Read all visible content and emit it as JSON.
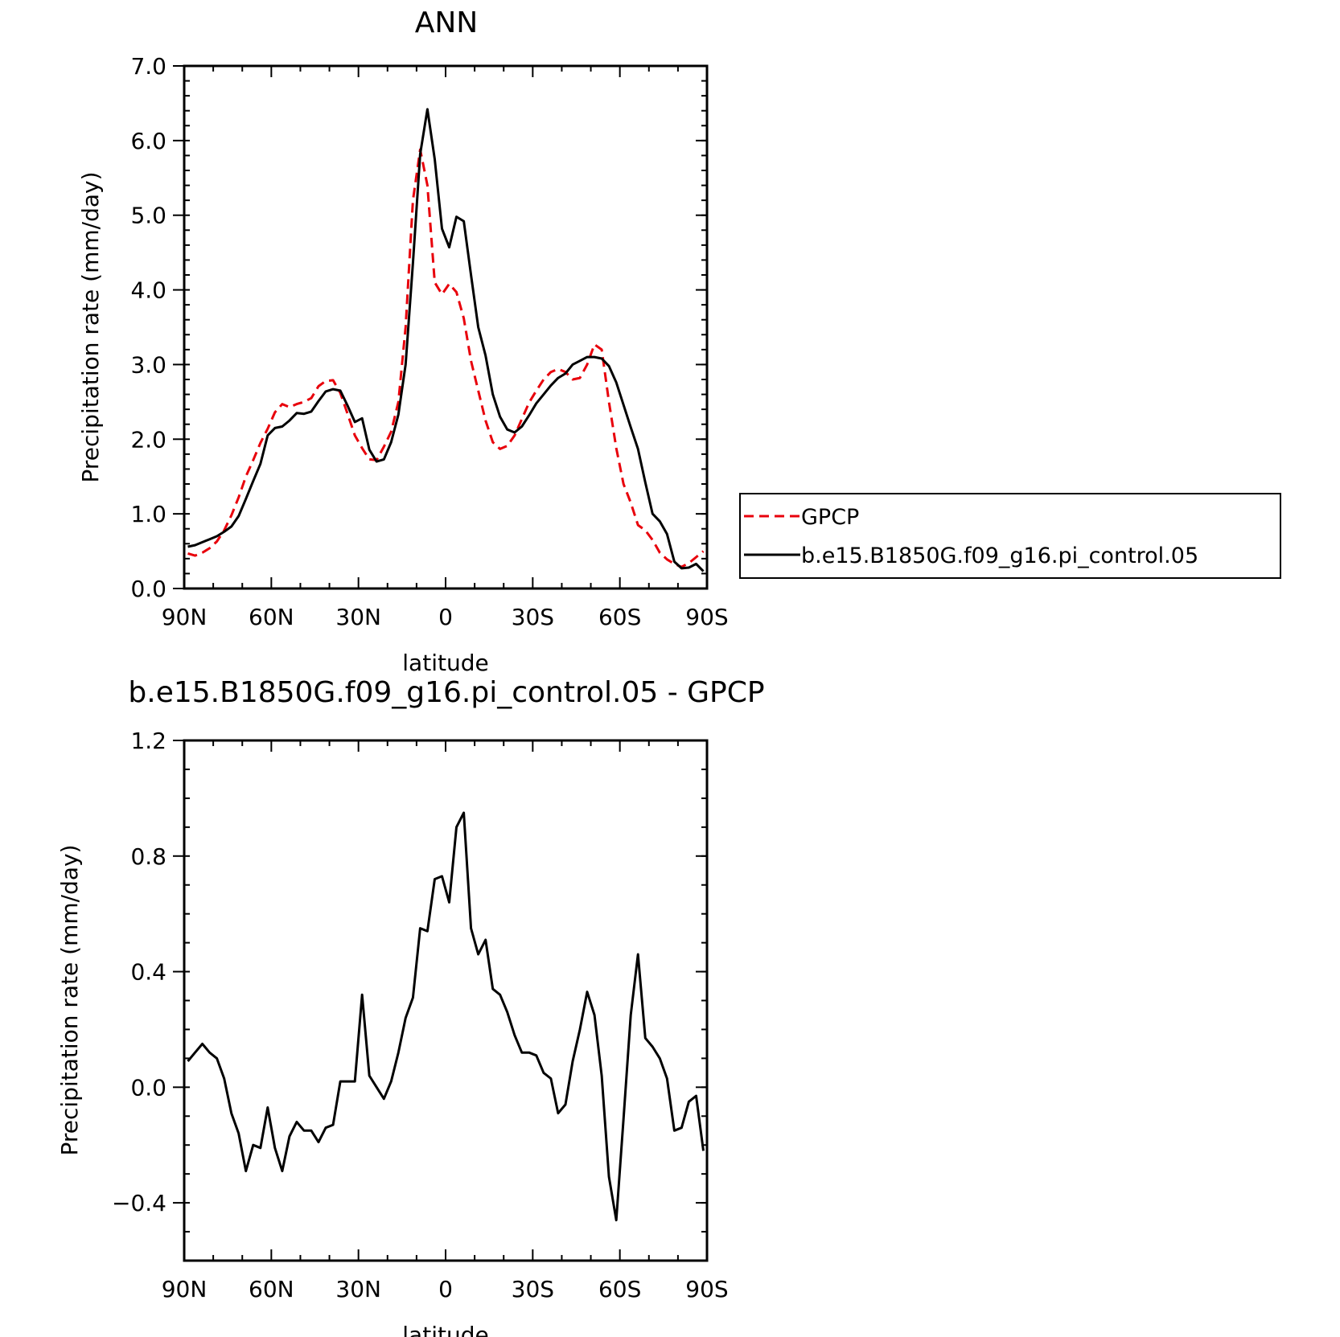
{
  "colors": {
    "gpcp": "#e8000b",
    "model": "#000000",
    "frame": "#000000"
  },
  "chart_data": [
    {
      "type": "line",
      "title": "ANN",
      "xlabel": "latitude",
      "ylabel": "Precipitation rate (mm/day)",
      "xlim": [
        90,
        -90
      ],
      "ylim": [
        0,
        7
      ],
      "xticks": [
        {
          "value": 90,
          "label": "90N"
        },
        {
          "value": 60,
          "label": "60N"
        },
        {
          "value": 30,
          "label": "30N"
        },
        {
          "value": 0,
          "label": "0"
        },
        {
          "value": -30,
          "label": "30S"
        },
        {
          "value": -60,
          "label": "60S"
        },
        {
          "value": -90,
          "label": "90S"
        }
      ],
      "yticks": [
        {
          "value": 0,
          "label": "0.0"
        },
        {
          "value": 1,
          "label": "1.0"
        },
        {
          "value": 2,
          "label": "2.0"
        },
        {
          "value": 3,
          "label": "3.0"
        },
        {
          "value": 4,
          "label": "4.0"
        },
        {
          "value": 5,
          "label": "5.0"
        },
        {
          "value": 6,
          "label": "6.0"
        },
        {
          "value": 7,
          "label": "7.0"
        }
      ],
      "legend_position": "right",
      "series": [
        {
          "name": "GPCP",
          "style": "dashed",
          "color": "#e8000b",
          "x": [
            88.75,
            86.25,
            83.75,
            81.25,
            78.75,
            76.25,
            73.75,
            71.25,
            68.75,
            66.25,
            63.75,
            61.25,
            58.75,
            56.25,
            53.75,
            51.25,
            48.75,
            46.25,
            43.75,
            41.25,
            38.75,
            36.25,
            33.75,
            31.25,
            28.75,
            26.25,
            23.75,
            21.25,
            18.75,
            16.25,
            13.75,
            11.25,
            8.75,
            6.25,
            3.75,
            1.25,
            -1.25,
            -3.75,
            -6.25,
            -8.75,
            -11.25,
            -13.75,
            -16.25,
            -18.75,
            -21.25,
            -23.75,
            -26.25,
            -28.75,
            -31.25,
            -33.75,
            -36.25,
            -38.75,
            -41.25,
            -43.75,
            -46.25,
            -48.75,
            -51.25,
            -53.75,
            -56.25,
            -58.75,
            -61.25,
            -63.75,
            -66.25,
            -68.75,
            -71.25,
            -73.75,
            -76.25,
            -78.75,
            -81.25,
            -83.75,
            -86.25,
            -88.75
          ],
          "values": [
            0.47,
            0.44,
            0.48,
            0.54,
            0.63,
            0.78,
            0.98,
            1.22,
            1.5,
            1.72,
            1.95,
            2.14,
            2.36,
            2.47,
            2.43,
            2.47,
            2.5,
            2.55,
            2.71,
            2.78,
            2.79,
            2.62,
            2.34,
            2.05,
            1.88,
            1.73,
            1.72,
            1.9,
            2.1,
            2.5,
            3.5,
            5.2,
            5.88,
            5.4,
            4.1,
            3.94,
            4.08,
            3.97,
            3.62,
            3.05,
            2.65,
            2.25,
            1.96,
            1.87,
            1.91,
            2.05,
            2.27,
            2.49,
            2.65,
            2.8,
            2.9,
            2.94,
            2.9,
            2.8,
            2.82,
            3.0,
            3.27,
            3.2,
            2.5,
            1.88,
            1.4,
            1.15,
            0.85,
            0.78,
            0.65,
            0.48,
            0.39,
            0.33,
            0.29,
            0.34,
            0.42,
            0.5
          ]
        },
        {
          "name": "b.e15.B1850G.f09_g16.pi_control.05",
          "style": "solid",
          "color": "#000000",
          "x": [
            88.75,
            86.25,
            83.75,
            81.25,
            78.75,
            76.25,
            73.75,
            71.25,
            68.75,
            66.25,
            63.75,
            61.25,
            58.75,
            56.25,
            53.75,
            51.25,
            48.75,
            46.25,
            43.75,
            41.25,
            38.75,
            36.25,
            33.75,
            31.25,
            28.75,
            26.25,
            23.75,
            21.25,
            18.75,
            16.25,
            13.75,
            11.25,
            8.75,
            6.25,
            3.75,
            1.25,
            -1.25,
            -3.75,
            -6.25,
            -8.75,
            -11.25,
            -13.75,
            -16.25,
            -18.75,
            -21.25,
            -23.75,
            -26.25,
            -28.75,
            -31.25,
            -33.75,
            -36.25,
            -38.75,
            -41.25,
            -43.75,
            -46.25,
            -48.75,
            -51.25,
            -53.75,
            -56.25,
            -58.75,
            -61.25,
            -63.75,
            -66.25,
            -68.75,
            -71.25,
            -73.75,
            -76.25,
            -78.75,
            -81.25,
            -83.75,
            -86.25,
            -88.75
          ],
          "values": [
            0.56,
            0.58,
            0.62,
            0.66,
            0.7,
            0.76,
            0.83,
            0.97,
            1.2,
            1.44,
            1.67,
            2.05,
            2.15,
            2.17,
            2.25,
            2.35,
            2.34,
            2.37,
            2.51,
            2.64,
            2.67,
            2.65,
            2.45,
            2.23,
            2.28,
            1.86,
            1.7,
            1.73,
            1.96,
            2.33,
            3.0,
            4.36,
            5.82,
            6.42,
            5.75,
            4.82,
            4.57,
            4.98,
            4.92,
            4.2,
            3.5,
            3.12,
            2.6,
            2.3,
            2.13,
            2.09,
            2.17,
            2.32,
            2.48,
            2.6,
            2.72,
            2.82,
            2.88,
            3.0,
            3.05,
            3.1,
            3.1,
            3.08,
            2.98,
            2.76,
            2.46,
            2.16,
            1.87,
            1.42,
            1.0,
            0.9,
            0.73,
            0.36,
            0.27,
            0.28,
            0.33,
            0.23
          ]
        }
      ]
    },
    {
      "type": "line",
      "title": "b.e15.B1850G.f09_g16.pi_control.05 - GPCP",
      "xlabel": "latitude",
      "ylabel": "Precipitation rate (mm/day)",
      "xlim": [
        90,
        -90
      ],
      "ylim": [
        -0.6,
        1.2
      ],
      "xticks": [
        {
          "value": 90,
          "label": "90N"
        },
        {
          "value": 60,
          "label": "60N"
        },
        {
          "value": 30,
          "label": "30N"
        },
        {
          "value": 0,
          "label": "0"
        },
        {
          "value": -30,
          "label": "30S"
        },
        {
          "value": -60,
          "label": "60S"
        },
        {
          "value": -90,
          "label": "90S"
        }
      ],
      "yticks": [
        {
          "value": -0.4,
          "label": "−0.4"
        },
        {
          "value": 0.0,
          "label": "0.0"
        },
        {
          "value": 0.4,
          "label": "0.4"
        },
        {
          "value": 0.8,
          "label": "0.8"
        },
        {
          "value": 1.2,
          "label": "1.2"
        }
      ],
      "series": [
        {
          "style": "solid",
          "color": "#000000",
          "x": [
            88.75,
            86.25,
            83.75,
            81.25,
            78.75,
            76.25,
            73.75,
            71.25,
            68.75,
            66.25,
            63.75,
            61.25,
            58.75,
            56.25,
            53.75,
            51.25,
            48.75,
            46.25,
            43.75,
            41.25,
            38.75,
            36.25,
            33.75,
            31.25,
            28.75,
            26.25,
            23.75,
            21.25,
            18.75,
            16.25,
            13.75,
            11.25,
            8.75,
            6.25,
            3.75,
            1.25,
            -1.25,
            -3.75,
            -6.25,
            -8.75,
            -11.25,
            -13.75,
            -16.25,
            -18.75,
            -21.25,
            -23.75,
            -26.25,
            -28.75,
            -31.25,
            -33.75,
            -36.25,
            -38.75,
            -41.25,
            -43.75,
            -46.25,
            -48.75,
            -51.25,
            -53.75,
            -56.25,
            -58.75,
            -61.25,
            -63.75,
            -66.25,
            -68.75,
            -71.25,
            -73.75,
            -76.25,
            -78.75,
            -81.25,
            -83.75,
            -86.25,
            -88.75
          ],
          "values": [
            0.09,
            0.12,
            0.15,
            0.12,
            0.1,
            0.03,
            -0.09,
            -0.16,
            -0.29,
            -0.2,
            -0.21,
            -0.07,
            -0.21,
            -0.29,
            -0.17,
            -0.12,
            -0.15,
            -0.15,
            -0.19,
            -0.14,
            -0.13,
            0.02,
            0.02,
            0.02,
            0.32,
            0.04,
            0.0,
            -0.04,
            0.02,
            0.12,
            0.24,
            0.31,
            0.55,
            0.54,
            0.72,
            0.73,
            0.64,
            0.9,
            0.95,
            0.55,
            0.46,
            0.51,
            0.34,
            0.32,
            0.26,
            0.18,
            0.12,
            0.12,
            0.11,
            0.05,
            0.03,
            -0.09,
            -0.06,
            0.09,
            0.2,
            0.33,
            0.25,
            0.04,
            -0.31,
            -0.46,
            -0.11,
            0.25,
            0.46,
            0.17,
            0.14,
            0.1,
            0.03,
            -0.15,
            -0.14,
            -0.05,
            -0.03,
            -0.22
          ]
        }
      ]
    }
  ]
}
